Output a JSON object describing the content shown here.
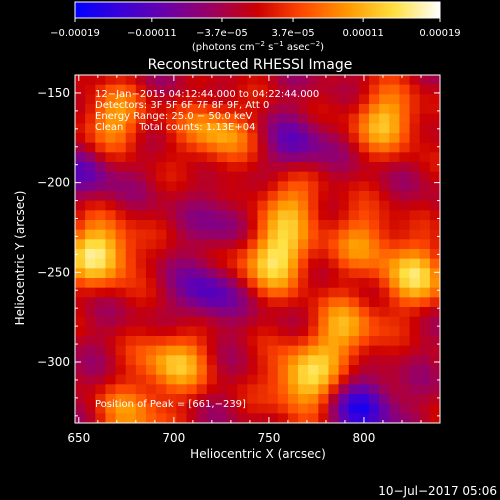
{
  "colorbar": {
    "tick_values": [
      -0.00019,
      -0.00011,
      -3.7e-05,
      3.7e-05,
      0.00011,
      0.00019
    ],
    "tick_labels": [
      "−0.00019",
      "−0.00011",
      "−3.7e−05",
      "3.7e−05",
      "0.00011",
      "0.00019"
    ],
    "range": [
      -0.00019,
      0.00019
    ],
    "unit_main": "(photons cm",
    "unit_sup1": "−2",
    "unit_mid1": " s",
    "unit_sup2": "−1",
    "unit_mid2": " asec",
    "unit_sup3": "−2",
    "unit_end": ")",
    "stops": [
      "#0000ff",
      "#3a00d8",
      "#6a00a8",
      "#9b0060",
      "#cc0000",
      "#ff4a00",
      "#ff9a00",
      "#ffe040",
      "#ffffff"
    ]
  },
  "chart_data": {
    "type": "heatmap",
    "title": "Reconstructed RHESSI Image",
    "xlabel": "Heliocentric X (arcsec)",
    "ylabel": "Heliocentric Y (arcsec)",
    "xlim": [
      648,
      840
    ],
    "ylim": [
      -334,
      -140
    ],
    "xticks": [
      650,
      700,
      750,
      800
    ],
    "yticks": [
      -150,
      -200,
      -250,
      -300
    ],
    "ytick_labels": [
      "−150",
      "−200",
      "−250",
      "−300"
    ],
    "grid": false,
    "annotations": [
      "12−Jan−2015 04:12:44.000 to 04:22:44.000",
      "Detectors: 3F 5F 6F 7F 8F 9F, Att 0",
      "Energy Range: 25.0 − 50.0 keV",
      "Clean     Total counts: 1.13E+04"
    ],
    "peak_label": "Position of Peak = [661,−239]",
    "peak": [
      661,
      -239
    ],
    "sources": [
      {
        "x": 661,
        "y": -239,
        "amp": 1.0
      },
      {
        "x": 752,
        "y": -242,
        "amp": 0.95
      },
      {
        "x": 768,
        "y": -310,
        "amp": 0.9
      },
      {
        "x": 700,
        "y": -300,
        "amp": 0.75
      },
      {
        "x": 812,
        "y": -165,
        "amp": 0.75
      },
      {
        "x": 828,
        "y": -252,
        "amp": 0.8
      },
      {
        "x": 790,
        "y": -283,
        "amp": 0.7
      },
      {
        "x": 668,
        "y": -165,
        "amp": 0.65
      },
      {
        "x": 722,
        "y": -172,
        "amp": 0.7
      },
      {
        "x": 760,
        "y": -212,
        "amp": 0.6
      },
      {
        "x": 678,
        "y": -330,
        "amp": 0.55
      },
      {
        "x": 800,
        "y": -232,
        "amp": 0.55
      }
    ],
    "negatives": [
      {
        "x": 800,
        "y": -325,
        "amp": 0.75
      },
      {
        "x": 718,
        "y": -262,
        "amp": 0.55
      },
      {
        "x": 655,
        "y": -195,
        "amp": 0.4
      },
      {
        "x": 765,
        "y": -180,
        "amp": 0.45
      },
      {
        "x": 730,
        "y": -222,
        "amp": 0.35
      }
    ]
  },
  "footer": {
    "timestamp": "10−Jul−2017 05:06"
  }
}
